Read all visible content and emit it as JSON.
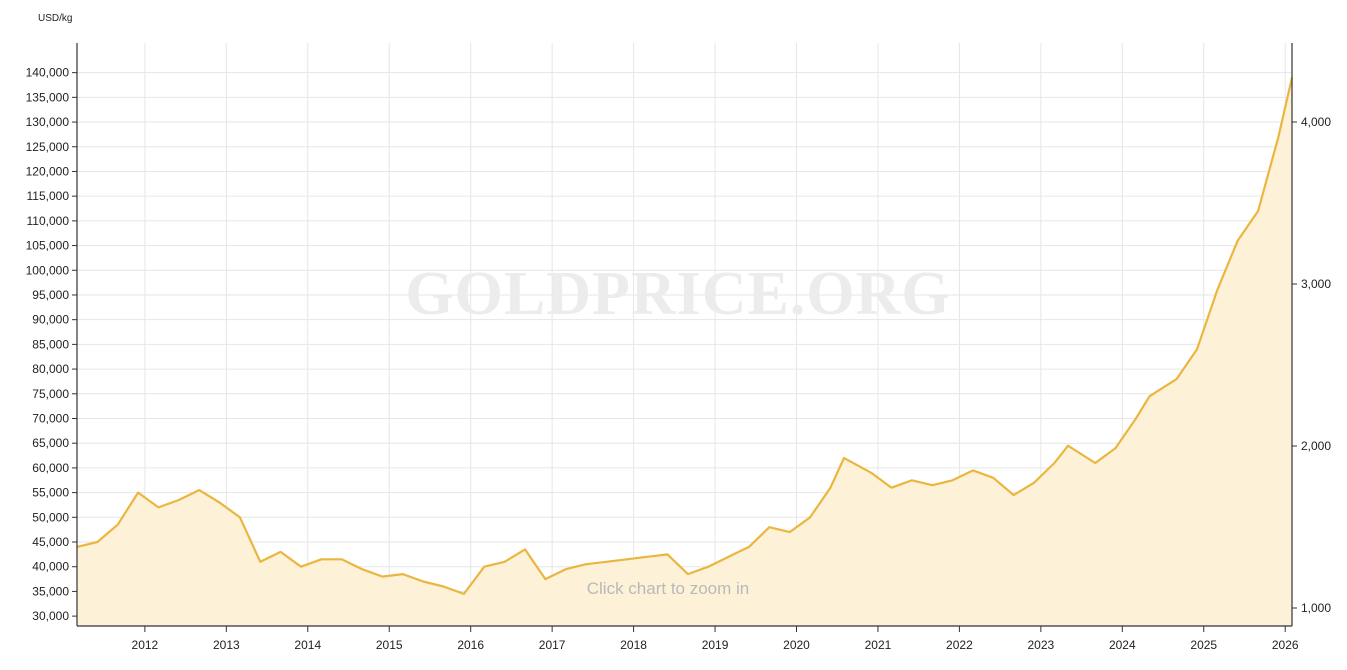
{
  "chart_data": {
    "type": "area",
    "unit_label": "USD/kg",
    "watermark": "GOLDPRICE.ORG",
    "hint": "Click chart to zoom in",
    "x_start": "2011-03",
    "x_end": "2026-02",
    "x_tick_labels": [
      "2012",
      "2013",
      "2014",
      "2015",
      "2016",
      "2017",
      "2018",
      "2019",
      "2020",
      "2021",
      "2022",
      "2023",
      "2024",
      "2025",
      "2026"
    ],
    "y_left": {
      "min": 28000,
      "max": 146000,
      "ticks": [
        30000,
        35000,
        40000,
        45000,
        50000,
        55000,
        60000,
        65000,
        70000,
        75000,
        80000,
        85000,
        90000,
        95000,
        100000,
        105000,
        110000,
        115000,
        120000,
        125000,
        130000,
        135000,
        140000
      ],
      "tick_labels": [
        "30,000",
        "35,000",
        "40,000",
        "45,000",
        "50,000",
        "55,000",
        "60,000",
        "65,000",
        "70,000",
        "75,000",
        "80,000",
        "85,000",
        "90,000",
        "95,000",
        "100,000",
        "105,000",
        "110,000",
        "115,000",
        "120,000",
        "125,000",
        "130,000",
        "135,000",
        "140,000"
      ]
    },
    "y_right": {
      "ticks": [
        1000,
        2000,
        3000,
        4000
      ],
      "tick_labels": [
        "1,000",
        "2,000",
        "3,000",
        "4,000"
      ]
    },
    "grid": true,
    "colors": {
      "line": "#ebb640",
      "fill": "#fdf1d8",
      "grid": "#e6e6e6",
      "axis": "#333333"
    },
    "series": [
      {
        "x": [
          "2011-03",
          "2011-06",
          "2011-09",
          "2011-12",
          "2012-03",
          "2012-06",
          "2012-09",
          "2012-12",
          "2013-03",
          "2013-06",
          "2013-09",
          "2013-12",
          "2014-03",
          "2014-06",
          "2014-09",
          "2014-12",
          "2015-03",
          "2015-06",
          "2015-09",
          "2015-12",
          "2016-03",
          "2016-06",
          "2016-09",
          "2016-12",
          "2017-03",
          "2017-06",
          "2017-09",
          "2017-12",
          "2018-03",
          "2018-06",
          "2018-09",
          "2018-12",
          "2019-03",
          "2019-06",
          "2019-09",
          "2019-12",
          "2020-03",
          "2020-06",
          "2020-08",
          "2020-12",
          "2021-03",
          "2021-06",
          "2021-09",
          "2021-12",
          "2022-03",
          "2022-06",
          "2022-09",
          "2022-12",
          "2023-03",
          "2023-05",
          "2023-09",
          "2023-12",
          "2024-03",
          "2024-05",
          "2024-09",
          "2024-12",
          "2025-03",
          "2025-06",
          "2025-09",
          "2025-12",
          "2026-02"
        ],
        "values": [
          44000,
          45000,
          48500,
          55000,
          52000,
          53500,
          55500,
          53000,
          50000,
          41000,
          43000,
          40000,
          41500,
          41500,
          39500,
          38000,
          38500,
          37000,
          36000,
          34500,
          40000,
          41000,
          43500,
          37500,
          39500,
          40500,
          41000,
          41500,
          42000,
          42500,
          38500,
          40000,
          42000,
          44000,
          48000,
          47000,
          50000,
          56000,
          62000,
          59000,
          56000,
          57500,
          56500,
          57500,
          59500,
          58000,
          54500,
          57000,
          61000,
          64500,
          61000,
          64000,
          70000,
          74500,
          78000,
          84000,
          96000,
          106000,
          112000,
          127000,
          139000
        ]
      }
    ]
  }
}
